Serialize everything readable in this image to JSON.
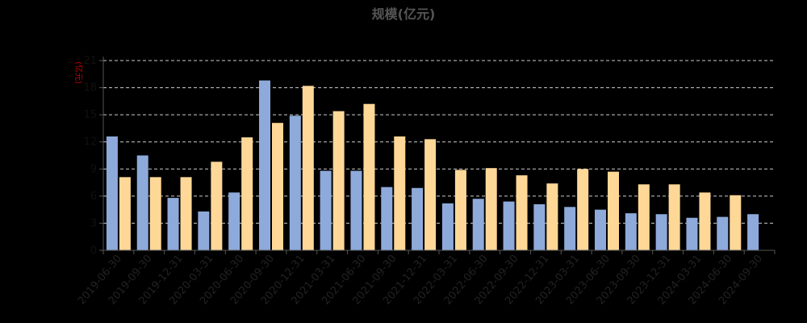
{
  "chart_data": {
    "type": "bar",
    "title": "规模(亿元)",
    "ylabel": "(亿元)",
    "ylim": [
      0,
      21
    ],
    "yticks": [
      0,
      3,
      6,
      9,
      12,
      15,
      18,
      21
    ],
    "grid": true,
    "categories": [
      "2019-06-30",
      "2019-09-30",
      "2019-12-31",
      "2020-03-31",
      "2020-06-30",
      "2020-09-30",
      "2020-12-31",
      "2021-03-31",
      "2021-06-30",
      "2021-09-30",
      "2021-12-31",
      "2022-03-31",
      "2022-06-30",
      "2022-09-30",
      "2022-12-31",
      "2023-03-31",
      "2023-06-30",
      "2023-09-30",
      "2023-12-31",
      "2024-03-31",
      "2024-06-30",
      "2024-09-30"
    ],
    "series": [
      {
        "values": [
          12.6,
          10.5,
          5.8,
          4.3,
          6.4,
          18.8,
          14.9,
          8.8,
          8.8,
          7.0,
          6.9,
          5.2,
          5.7,
          5.4,
          5.1,
          4.8,
          4.5,
          4.1,
          4.0,
          3.6,
          3.7,
          4.0
        ]
      },
      {
        "values": [
          8.1,
          8.1,
          8.1,
          9.8,
          12.5,
          14.1,
          18.2,
          15.4,
          16.2,
          12.6,
          12.3,
          8.9,
          9.1,
          8.3,
          7.4,
          9.0,
          8.7,
          7.3,
          7.3,
          6.4,
          6.1,
          null
        ]
      }
    ],
    "colors": [
      "#8eaadb",
      "#ffd898"
    ],
    "axis_color": "#555555",
    "grid_color": "#cccccc"
  }
}
